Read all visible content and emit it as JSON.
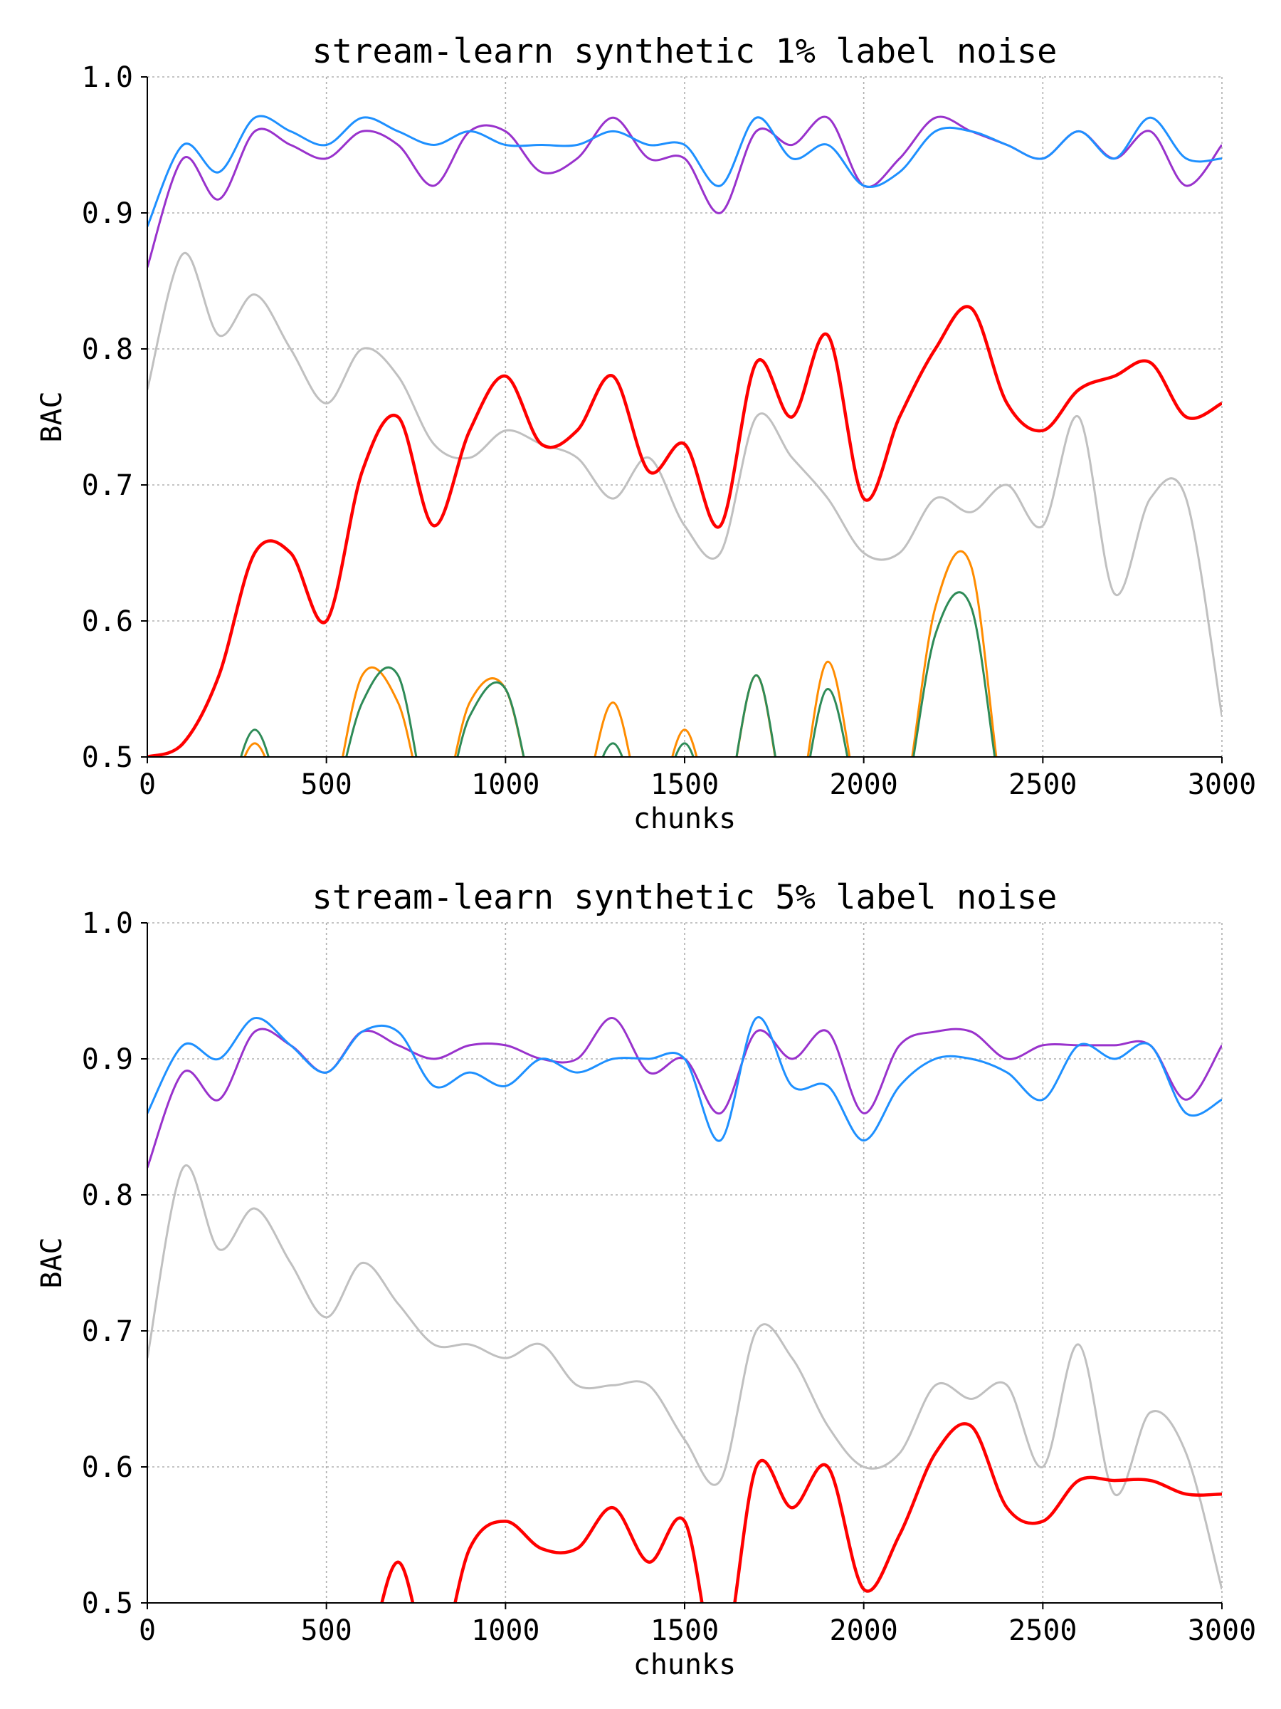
{
  "chart_data": [
    {
      "type": "line",
      "title": "stream-learn synthetic 1% label noise",
      "xlabel": "chunks",
      "ylabel": "BAC",
      "xlim": [
        0,
        3000
      ],
      "ylim": [
        0.5,
        1.0
      ],
      "xticks": [
        "0",
        "500",
        "1000",
        "1500",
        "2000",
        "2500",
        "3000"
      ],
      "yticks": [
        "0.5",
        "0.6",
        "0.7",
        "0.8",
        "0.9",
        "1.0"
      ],
      "grid": true,
      "x": [
        0,
        100,
        200,
        300,
        400,
        500,
        600,
        700,
        800,
        900,
        1000,
        1100,
        1200,
        1300,
        1400,
        1500,
        1600,
        1700,
        1800,
        1900,
        2000,
        2100,
        2200,
        2300,
        2400,
        2500,
        2600,
        2700,
        2800,
        2900,
        3000
      ],
      "series": [
        {
          "color": "#c0c0c0",
          "values": [
            0.77,
            0.87,
            0.81,
            0.84,
            0.8,
            0.76,
            0.8,
            0.78,
            0.73,
            0.72,
            0.74,
            0.73,
            0.72,
            0.69,
            0.72,
            0.67,
            0.65,
            0.75,
            0.72,
            0.69,
            0.65,
            0.65,
            0.69,
            0.68,
            0.7,
            0.67,
            0.75,
            0.62,
            0.69,
            0.69,
            0.53
          ]
        },
        {
          "color": "#ff0000",
          "values": [
            0.5,
            0.51,
            0.56,
            0.65,
            0.65,
            0.6,
            0.71,
            0.75,
            0.67,
            0.74,
            0.78,
            0.73,
            0.74,
            0.78,
            0.71,
            0.73,
            0.67,
            0.79,
            0.75,
            0.81,
            0.69,
            0.75,
            0.8,
            0.83,
            0.76,
            0.74,
            0.77,
            0.78,
            0.79,
            0.75,
            0.76
          ]
        },
        {
          "color": "#ff8c00",
          "values": [
            0.45,
            0.45,
            0.45,
            0.51,
            0.45,
            0.45,
            0.56,
            0.54,
            0.45,
            0.54,
            0.55,
            0.45,
            0.45,
            0.54,
            0.45,
            0.52,
            0.45,
            0.56,
            0.45,
            0.57,
            0.45,
            0.45,
            0.61,
            0.64,
            0.45,
            0.45,
            0.45,
            0.45,
            0.45,
            0.45,
            0.45
          ]
        },
        {
          "color": "#2e8b57",
          "values": [
            0.45,
            0.45,
            0.45,
            0.52,
            0.45,
            0.45,
            0.54,
            0.56,
            0.45,
            0.53,
            0.55,
            0.45,
            0.45,
            0.51,
            0.45,
            0.51,
            0.45,
            0.56,
            0.45,
            0.55,
            0.45,
            0.45,
            0.59,
            0.61,
            0.45,
            0.45,
            0.45,
            0.45,
            0.45,
            0.45,
            0.45
          ]
        },
        {
          "color": "#9932cc",
          "values": [
            0.86,
            0.94,
            0.91,
            0.96,
            0.95,
            0.94,
            0.96,
            0.95,
            0.92,
            0.96,
            0.96,
            0.93,
            0.94,
            0.97,
            0.94,
            0.94,
            0.9,
            0.96,
            0.95,
            0.97,
            0.92,
            0.94,
            0.97,
            0.96,
            0.95,
            0.94,
            0.96,
            0.94,
            0.96,
            0.92,
            0.95
          ]
        },
        {
          "color": "#1e90ff",
          "values": [
            0.89,
            0.95,
            0.93,
            0.97,
            0.96,
            0.95,
            0.97,
            0.96,
            0.95,
            0.96,
            0.95,
            0.95,
            0.95,
            0.96,
            0.95,
            0.95,
            0.92,
            0.97,
            0.94,
            0.95,
            0.92,
            0.93,
            0.96,
            0.96,
            0.95,
            0.94,
            0.96,
            0.94,
            0.97,
            0.94,
            0.94
          ]
        }
      ]
    },
    {
      "type": "line",
      "title": "stream-learn synthetic 5% label noise",
      "xlabel": "chunks",
      "ylabel": "BAC",
      "xlim": [
        0,
        3000
      ],
      "ylim": [
        0.5,
        1.0
      ],
      "xticks": [
        "0",
        "500",
        "1000",
        "1500",
        "2000",
        "2500",
        "3000"
      ],
      "yticks": [
        "0.5",
        "0.6",
        "0.7",
        "0.8",
        "0.9",
        "1.0"
      ],
      "grid": true,
      "x": [
        0,
        100,
        200,
        300,
        400,
        500,
        600,
        700,
        800,
        900,
        1000,
        1100,
        1200,
        1300,
        1400,
        1500,
        1600,
        1700,
        1800,
        1900,
        2000,
        2100,
        2200,
        2300,
        2400,
        2500,
        2600,
        2700,
        2800,
        2900,
        3000
      ],
      "series": [
        {
          "color": "#c0c0c0",
          "values": [
            0.68,
            0.82,
            0.76,
            0.79,
            0.75,
            0.71,
            0.75,
            0.72,
            0.69,
            0.69,
            0.68,
            0.69,
            0.66,
            0.66,
            0.66,
            0.62,
            0.59,
            0.7,
            0.68,
            0.63,
            0.6,
            0.61,
            0.66,
            0.65,
            0.66,
            0.6,
            0.69,
            0.58,
            0.64,
            0.61,
            0.51
          ]
        },
        {
          "color": "#ff0000",
          "values": [
            0.45,
            0.45,
            0.45,
            0.45,
            0.45,
            0.45,
            0.45,
            0.53,
            0.45,
            0.54,
            0.56,
            0.54,
            0.54,
            0.57,
            0.53,
            0.56,
            0.45,
            0.6,
            0.57,
            0.6,
            0.51,
            0.55,
            0.61,
            0.63,
            0.57,
            0.56,
            0.59,
            0.59,
            0.59,
            0.58,
            0.58
          ]
        },
        {
          "color": "#9932cc",
          "values": [
            0.82,
            0.89,
            0.87,
            0.92,
            0.91,
            0.89,
            0.92,
            0.91,
            0.9,
            0.91,
            0.91,
            0.9,
            0.9,
            0.93,
            0.89,
            0.9,
            0.86,
            0.92,
            0.9,
            0.92,
            0.86,
            0.91,
            0.92,
            0.92,
            0.9,
            0.91,
            0.91,
            0.91,
            0.91,
            0.87,
            0.91
          ]
        },
        {
          "color": "#1e90ff",
          "values": [
            0.86,
            0.91,
            0.9,
            0.93,
            0.91,
            0.89,
            0.92,
            0.92,
            0.88,
            0.89,
            0.88,
            0.9,
            0.89,
            0.9,
            0.9,
            0.9,
            0.84,
            0.93,
            0.88,
            0.88,
            0.84,
            0.88,
            0.9,
            0.9,
            0.89,
            0.87,
            0.91,
            0.9,
            0.91,
            0.86,
            0.87
          ]
        }
      ]
    }
  ]
}
